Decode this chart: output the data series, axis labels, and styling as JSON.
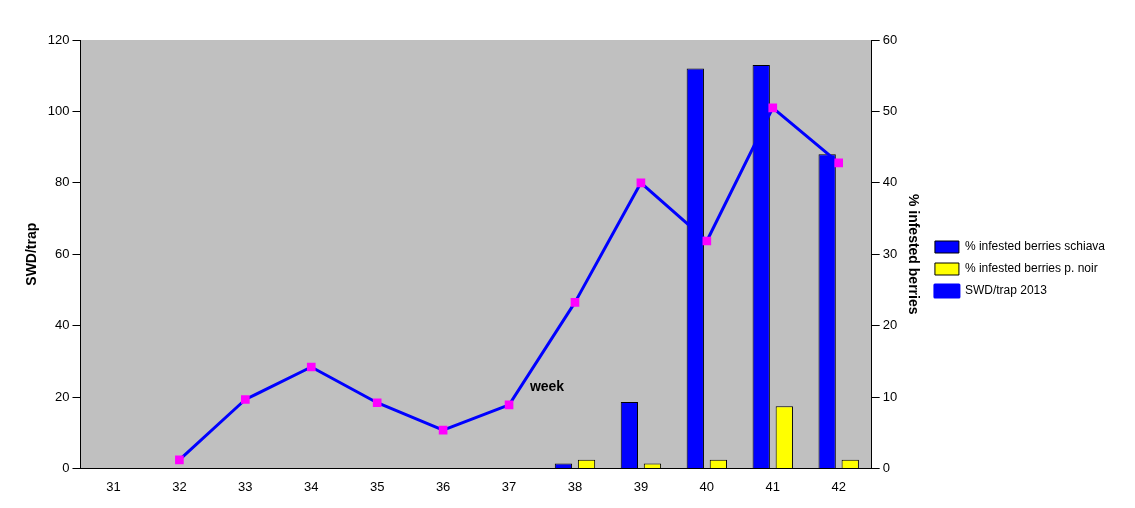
{
  "chart_data": {
    "type": "bar",
    "xlabel": "week",
    "ylabel": "SWD/trap",
    "y2label": "% infested berries",
    "categories": [
      "31",
      "32",
      "33",
      "34",
      "35",
      "36",
      "37",
      "38",
      "39",
      "40",
      "41",
      "42"
    ],
    "series": [
      {
        "name": "% infested berries schiava",
        "axis": "y2",
        "color": "#0000ff",
        "values": [
          null,
          null,
          null,
          null,
          null,
          null,
          null,
          0.7,
          9.3,
          56,
          56.5,
          44
        ]
      },
      {
        "name": "% infested berries p. noir",
        "axis": "y2",
        "color": "#ffff00",
        "values": [
          null,
          null,
          null,
          null,
          null,
          null,
          null,
          1.2,
          0.7,
          1.2,
          8.7,
          1.2
        ]
      },
      {
        "name": "SWD/trap 2013",
        "type": "line",
        "color": "#0000ff",
        "values": [
          null,
          2.4,
          19.3,
          28.4,
          18.4,
          10.7,
          17.8,
          46.5,
          80,
          63.7,
          101,
          85.6
        ]
      }
    ],
    "ylim": [
      0,
      120
    ],
    "yticks": [
      0,
      20,
      40,
      60,
      80,
      100,
      120
    ],
    "y2lim": [
      0,
      60
    ],
    "y2ticks": [
      0,
      10,
      20,
      30,
      40,
      50,
      60
    ],
    "grid": false,
    "legend": "right",
    "marker": "square",
    "line_style": "solid"
  }
}
